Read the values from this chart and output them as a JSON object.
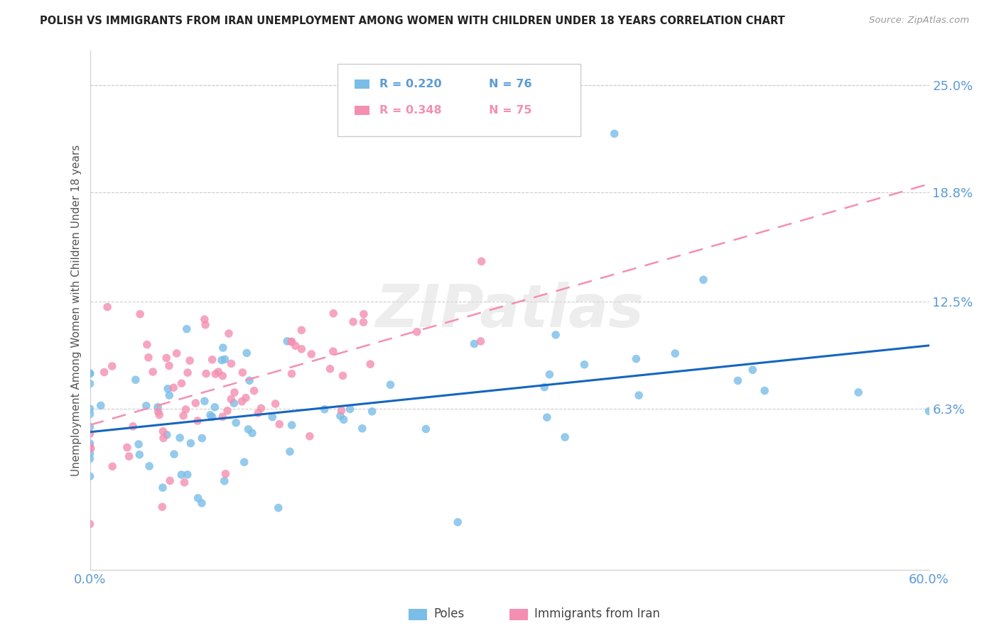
{
  "title": "POLISH VS IMMIGRANTS FROM IRAN UNEMPLOYMENT AMONG WOMEN WITH CHILDREN UNDER 18 YEARS CORRELATION CHART",
  "source": "Source: ZipAtlas.com",
  "ylabel": "Unemployment Among Women with Children Under 18 years",
  "xlim": [
    0.0,
    0.6
  ],
  "ylim": [
    -0.03,
    0.27
  ],
  "yticks_right": [
    0.063,
    0.125,
    0.188,
    0.25
  ],
  "yticklabels_right": [
    "6.3%",
    "12.5%",
    "18.8%",
    "25.0%"
  ],
  "watermark": "ZIPatlas",
  "poles_color": "#7abde8",
  "iran_color": "#f48fb1",
  "poles_line_color": "#1565c0",
  "iran_line_color": "#e91e63",
  "background_color": "#ffffff",
  "grid_color": "#cccccc",
  "tick_label_color": "#5b9bd5",
  "poles_R": "R = 0.220",
  "poles_N": "N = 76",
  "iran_R": "R = 0.348",
  "iran_N": "N = 75",
  "poles_label": "Poles",
  "iran_label": "Immigrants from Iran"
}
